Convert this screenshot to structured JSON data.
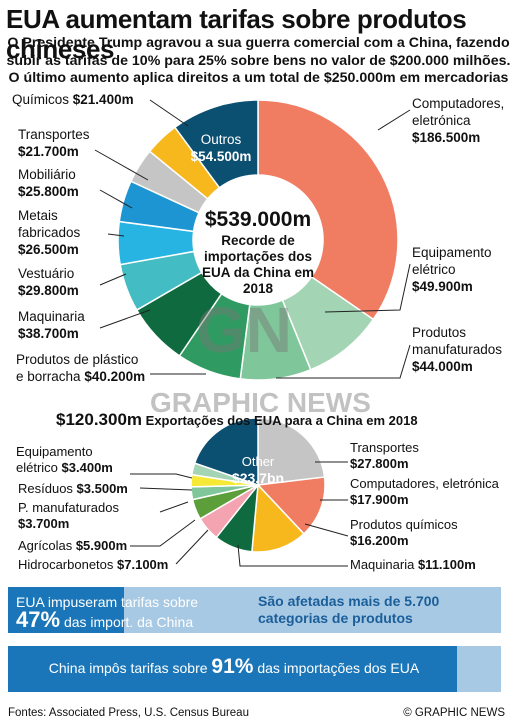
{
  "headline": "EUA aumentam tarifas sobre produtos chineses",
  "intro": "O Presidente Trump agravou a sua guerra comercial com a China, fazendo subir as tarifas de 10% para 25% sobre bens no valor de $200.000 milhões. O último aumento aplica direitos a um total de $250.000m em mercadorias",
  "chart_data": [
    {
      "type": "pie",
      "title": "Recorde de importações dos EUA da China em 2018",
      "total": "$539.000m",
      "slices": [
        {
          "name": "Computadores, eletrónica",
          "value_label": "$186.500m",
          "value": 186.5,
          "color": "#f07c62"
        },
        {
          "name": "Equipamento elétrico",
          "value_label": "$49.900m",
          "value": 49.9,
          "color": "#a3d4b3"
        },
        {
          "name": "Produtos manufaturados",
          "value_label": "$44.000m",
          "value": 44.0,
          "color": "#7fc79a"
        },
        {
          "name": "Produtos de plástico e borracha",
          "value_label": "$40.200m",
          "value": 40.2,
          "color": "#2f9a62"
        },
        {
          "name": "Maquinaria",
          "value_label": "$38.700m",
          "value": 38.7,
          "color": "#0f6a3f"
        },
        {
          "name": "Vestuário",
          "value_label": "$29.800m",
          "value": 29.8,
          "color": "#44bcc4"
        },
        {
          "name": "Metais fabricados",
          "value_label": "$26.500m",
          "value": 26.5,
          "color": "#27b4e2"
        },
        {
          "name": "Mobiliário",
          "value_label": "$25.800m",
          "value": 25.8,
          "color": "#1d95d3"
        },
        {
          "name": "Transportes",
          "value_label": "$21.700m",
          "value": 21.7,
          "color": "#c5c5c5"
        },
        {
          "name": "Químicos",
          "value_label": "$21.400m",
          "value": 21.4,
          "color": "#f6b81c"
        },
        {
          "name": "Outros",
          "value_label": "$54.500m",
          "value": 54.5,
          "color": "#0b4f71"
        }
      ]
    },
    {
      "type": "pie",
      "title": "Exportações dos EUA para a China em 2018",
      "total": "$120.300m",
      "slices": [
        {
          "name": "Transportes",
          "value_label": "$27.800m",
          "value": 27.8,
          "color": "#c5c5c5"
        },
        {
          "name": "Computadores, eletrónica",
          "value_label": "$17.900m",
          "value": 17.9,
          "color": "#f07c62"
        },
        {
          "name": "Produtos químicos",
          "value_label": "$16.200m",
          "value": 16.2,
          "color": "#f6b81c"
        },
        {
          "name": "Maquinaria",
          "value_label": "$11.100m",
          "value": 11.1,
          "color": "#0f6a3f"
        },
        {
          "name": "Hidrocarbonetos",
          "value_label": "$7.100m",
          "value": 7.1,
          "color": "#f4a3b0"
        },
        {
          "name": "Agrícolas",
          "value_label": "$5.900m",
          "value": 5.9,
          "color": "#5c9e3a"
        },
        {
          "name": "P. manufaturados",
          "value_label": "$3.700m",
          "value": 3.7,
          "color": "#7fc79a"
        },
        {
          "name": "Resíduos",
          "value_label": "$3.500m",
          "value": 3.5,
          "color": "#f5e936"
        },
        {
          "name": "Equipamento elétrico",
          "value_label": "$3.400m",
          "value": 3.4,
          "color": "#a3d4b3"
        },
        {
          "name": "Other",
          "value_label": "$23.7bn",
          "value": 23.7,
          "color": "#0b4f71"
        }
      ]
    }
  ],
  "labels": {
    "quimicos": "Químicos",
    "quimicos_v": "$21.400m",
    "transportes": "Transportes",
    "transportes_v": "$21.700m",
    "mobiliario": "Mobiliário",
    "mobiliario_v": "$25.800m",
    "metais1": "Metais",
    "metais2": "fabricados",
    "metais_v": "$26.500m",
    "vestuario": "Vestuário",
    "vestuario_v": "$29.800m",
    "maquinaria": "Maquinaria",
    "maquinaria_v": "$38.700m",
    "plastico1": "Produtos de plástico",
    "plastico2": "e borracha",
    "plastico_v": "$40.200m",
    "computadores1": "Computadores,",
    "computadores2": "eletrónica",
    "computadores_v": "$186.500m",
    "equip1": "Equipamento",
    "equip2": "elétrico",
    "equip_v": "$49.900m",
    "prodman1": "Produtos",
    "prodman2": "manufaturados",
    "prodman_v": "$44.000m",
    "outros": "Outros",
    "outros_v": "$54.500m",
    "center_total": "$539.000m",
    "center_text": "Recorde de importações dos EUA da China em 2018"
  },
  "exports": {
    "total": "$120.300m",
    "title": "Exportações dos EUA para a China em 2018",
    "other": "Other",
    "other_v": "$23.7bn",
    "transportes": "Transportes",
    "transportes_v": "$27.800m",
    "comp": "Computadores, eletrónica",
    "comp_v": "$17.900m",
    "quim": "Produtos químicos",
    "quim_v": "$16.200m",
    "maq": "Maquinaria",
    "maq_v": "$11.100m",
    "hidro": "Hidrocarbonetos",
    "hidro_v": "$7.100m",
    "agri": "Agrícolas",
    "agri_v": "$5.900m",
    "pman": "P. manufaturados",
    "pman_v": "$3.700m",
    "resid": "Resíduos",
    "resid_v": "$3.500m",
    "equip1": "Equipamento",
    "equip2": "elétrico",
    "equip_v": "$3.400m"
  },
  "boxes": {
    "us_line1": "EUA impuseram tarifas sobre",
    "us_pct": "47%",
    "us_line2": "das import. da China",
    "cat_line": "São afetadas mais de 5.700 categorias de produtos",
    "cn_a": "China impôs tarifas sobre",
    "cn_pct": "91%",
    "cn_b": "das importações dos EUA",
    "us_fill": 0.47,
    "cn_fill": 0.91
  },
  "footer": {
    "sources": "Fontes: Associated Press, U.S. Census Bureau",
    "credit": "© GRAPHIC NEWS"
  },
  "watermark": {
    "logo": "GN",
    "text": "GRAPHIC NEWS"
  }
}
